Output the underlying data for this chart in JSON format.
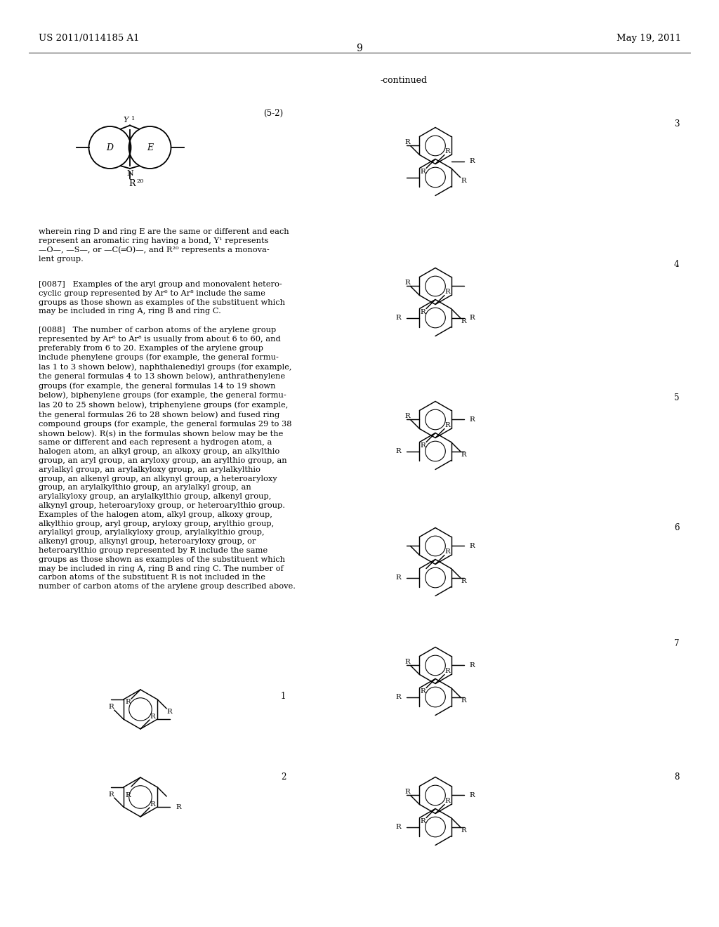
{
  "page_num": "9",
  "patent_left": "US 2011/0114185 A1",
  "patent_right": "May 19, 2011",
  "continued_label": "-continued",
  "formula_label": "(5-2)",
  "bg_color": "#ffffff",
  "text_color": "#000000"
}
